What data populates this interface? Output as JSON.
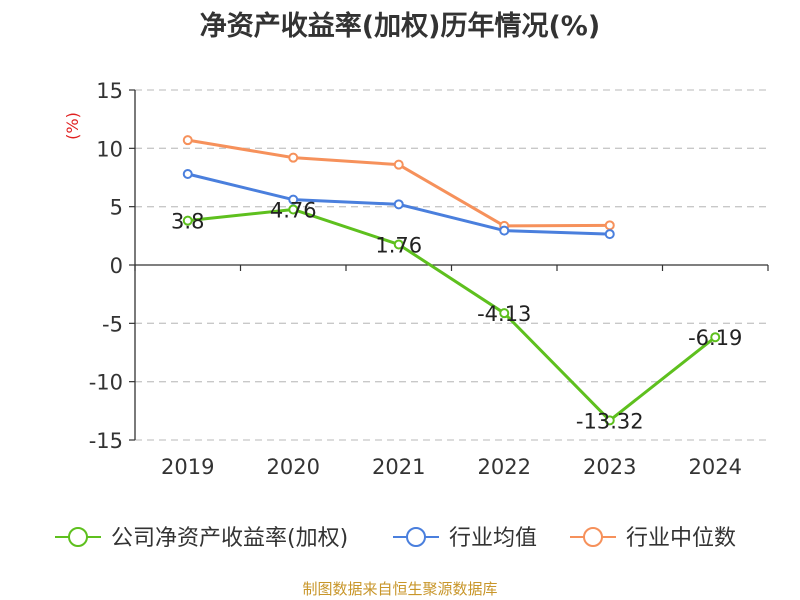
{
  "title": "净资产收益率(加权)历年情况(%)",
  "source": "制图数据来自恒生聚源数据库",
  "chart_data": {
    "type": "line",
    "title": "净资产收益率(加权)历年情况(%)",
    "xlabel": "",
    "ylabel": "(%)",
    "categories": [
      "2019",
      "2020",
      "2021",
      "2022",
      "2023",
      "2024"
    ],
    "ylim": [
      -15,
      15
    ],
    "yticks": [
      15,
      10,
      5,
      0,
      -5,
      -10,
      -15
    ],
    "grid": true,
    "legend_position": "bottom",
    "series": [
      {
        "name": "公司净资产收益率(加权)",
        "color": "#5ec01e",
        "values": [
          3.8,
          4.76,
          1.76,
          -4.13,
          -13.32,
          -6.19
        ],
        "labels": [
          "3.8",
          "4.76",
          "1.76",
          "-4.13",
          "-13.32",
          "-6.19"
        ]
      },
      {
        "name": "行业均值",
        "color": "#4a7fdd",
        "values": [
          7.8,
          5.6,
          5.2,
          2.95,
          2.65,
          null
        ]
      },
      {
        "name": "行业中位数",
        "color": "#f6915b",
        "values": [
          10.7,
          9.2,
          8.6,
          3.35,
          3.4,
          null
        ]
      }
    ]
  }
}
